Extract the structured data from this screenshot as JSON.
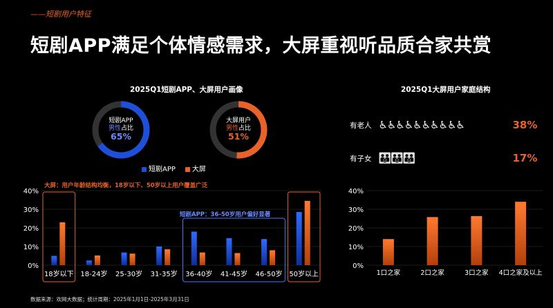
{
  "header": {
    "tag": "——短剧用户特征",
    "title": "短剧APP满足个体情感需求，大屏重视听品质合家共赏"
  },
  "colors": {
    "blue": "#1d4fd8",
    "orange": "#e8622a",
    "muted": "#333333"
  },
  "left": {
    "title": "2025Q1短剧APP、大屏用户画像",
    "donut_app": {
      "line1": "短剧APP",
      "line2_prefix": "男性",
      "line2_suffix": "占比",
      "pct": "65%"
    },
    "donut_tv": {
      "line1": "大屏用户",
      "line2_prefix": "男性",
      "line2_suffix": "占比",
      "pct": "51%"
    },
    "legend": [
      "短剧APP",
      "大屏"
    ],
    "note_tv": "大屏：用户年龄结构均衡，18岁以下、50岁以上用户覆盖广泛",
    "note_app": "短剧APP：36-50岁用户偏好显著"
  },
  "right": {
    "title": "2025Q1大屏用户家庭结构",
    "rows": [
      {
        "label": "有老人",
        "glyphs": "♿♿♿♿♿♿♿♿♿♿",
        "value": "38%"
      },
      {
        "label": "有子女",
        "glyphs": "👪👪👪",
        "value": "17%"
      }
    ]
  },
  "source": "数据来源：欢网大数据；统计周期：2025年1月1日-2025年3月31日",
  "chart_data": [
    {
      "type": "donut",
      "title": "2025Q1短剧APP、大屏用户画像",
      "series": [
        {
          "name": "短剧APP",
          "values": [
            65
          ]
        },
        {
          "name": "大屏",
          "values": [
            51
          ]
        }
      ]
    },
    {
      "type": "bar",
      "categories": [
        "18岁以下",
        "18-24岁",
        "25-30岁",
        "31-35岁",
        "36-40岁",
        "41-45岁",
        "46-50岁",
        "50岁以上"
      ],
      "series": [
        {
          "name": "短剧APP",
          "values": [
            5,
            2.5,
            6.8,
            10,
            18,
            14.5,
            14,
            28.5
          ]
        },
        {
          "name": "大屏",
          "values": [
            23,
            5.2,
            6.2,
            8.5,
            6.8,
            6.5,
            8,
            34.5
          ]
        }
      ],
      "yticks": [
        "0%",
        "10%",
        "20%",
        "30%",
        "40%"
      ],
      "ylim": [
        0,
        40
      ]
    },
    {
      "type": "bar",
      "title": "2025Q1大屏用户家庭结构",
      "categories": [
        "1口之家",
        "2口之家",
        "3口之家",
        "4口之家及以上"
      ],
      "values": [
        14,
        25.8,
        26.3,
        34
      ],
      "yticks": [
        "0%",
        "10%",
        "20%",
        "30%",
        "40%"
      ],
      "ylim": [
        0,
        40
      ]
    }
  ]
}
